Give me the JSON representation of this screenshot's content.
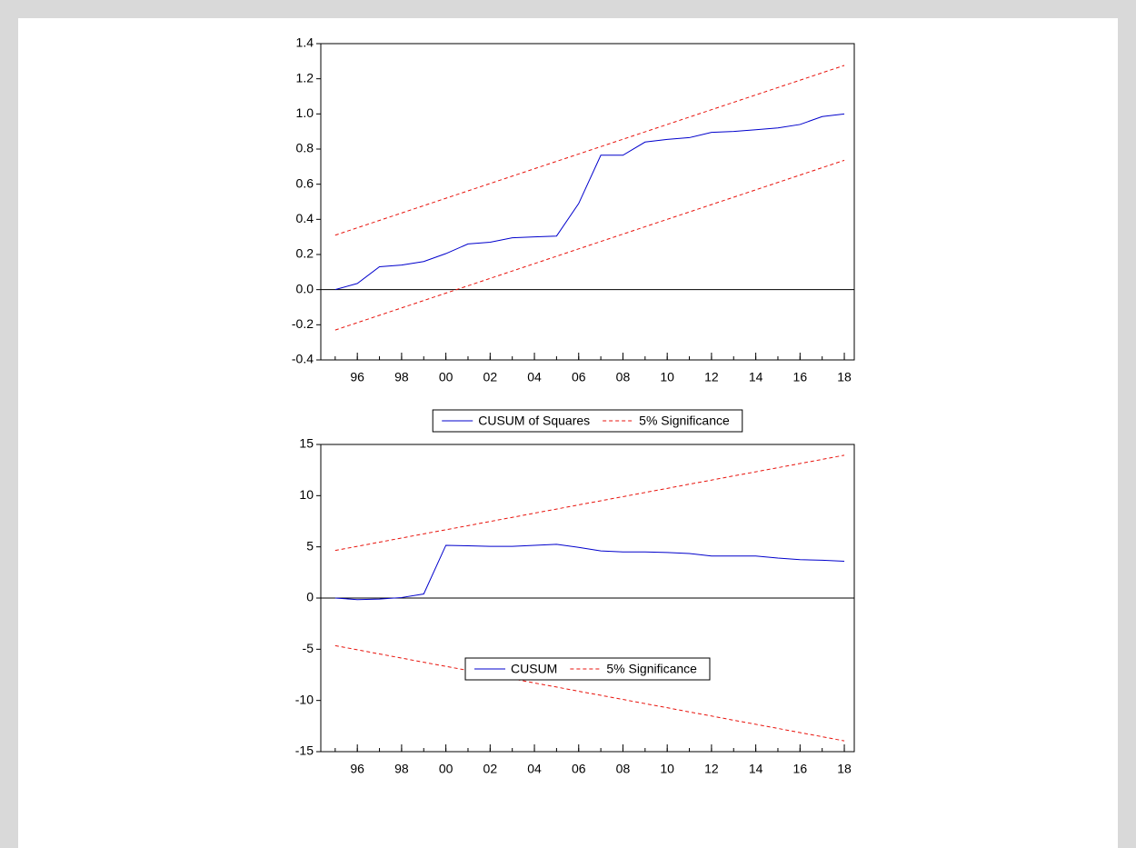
{
  "chart_data": [
    {
      "type": "line",
      "x": [
        1995,
        1996,
        1997,
        1998,
        1999,
        2000,
        2001,
        2002,
        2003,
        2004,
        2005,
        2006,
        2007,
        2008,
        2009,
        2010,
        2011,
        2012,
        2013,
        2014,
        2015,
        2016,
        2017,
        2018
      ],
      "series": [
        {
          "name": "CUSUM of Squares",
          "color": "#0000cc",
          "dash": false,
          "values": [
            0.0,
            0.035,
            0.13,
            0.14,
            0.16,
            0.205,
            0.26,
            0.27,
            0.295,
            0.3,
            0.305,
            0.49,
            0.765,
            0.765,
            0.84,
            0.855,
            0.865,
            0.895,
            0.9,
            0.91,
            0.92,
            0.94,
            0.985,
            1.0
          ]
        },
        {
          "name": "5% Significance",
          "color": "#e8130c",
          "dash": true,
          "values": [
            0.31,
            0.352,
            0.394,
            0.436,
            0.478,
            0.52,
            0.562,
            0.604,
            0.646,
            0.688,
            0.73,
            0.772,
            0.814,
            0.856,
            0.898,
            0.94,
            0.982,
            1.024,
            1.066,
            1.108,
            1.15,
            1.192,
            1.234,
            1.276
          ]
        },
        {
          "color": "#e8130c",
          "dash": true,
          "values": [
            -0.23,
            -0.188,
            -0.146,
            -0.104,
            -0.062,
            -0.02,
            0.022,
            0.064,
            0.106,
            0.148,
            0.19,
            0.232,
            0.274,
            0.316,
            0.358,
            0.4,
            0.442,
            0.484,
            0.526,
            0.568,
            0.61,
            0.652,
            0.694,
            0.736
          ]
        }
      ],
      "xlim": [
        1994.35,
        2018.45
      ],
      "xticks": [
        {
          "value": 1996,
          "label": "96"
        },
        {
          "value": 1998,
          "label": "98"
        },
        {
          "value": 2000,
          "label": "00"
        },
        {
          "value": 2002,
          "label": "02"
        },
        {
          "value": 2004,
          "label": "04"
        },
        {
          "value": 2006,
          "label": "06"
        },
        {
          "value": 2008,
          "label": "08"
        },
        {
          "value": 2010,
          "label": "10"
        },
        {
          "value": 2012,
          "label": "12"
        },
        {
          "value": 2014,
          "label": "14"
        },
        {
          "value": 2016,
          "label": "16"
        },
        {
          "value": 2018,
          "label": "18"
        }
      ],
      "ylim": [
        -0.4,
        1.4
      ],
      "yticks": [
        -0.4,
        -0.2,
        {
          "value": 0,
          "label": "0.0"
        },
        0.2,
        0.4,
        0.6,
        0.8,
        {
          "value": 1,
          "label": "1.0"
        },
        1.2,
        1.4
      ],
      "zero_line": true
    },
    {
      "type": "line",
      "x": [
        1995,
        1996,
        1997,
        1998,
        1999,
        2000,
        2001,
        2002,
        2003,
        2004,
        2005,
        2006,
        2007,
        2008,
        2009,
        2010,
        2011,
        2012,
        2013,
        2014,
        2015,
        2016,
        2017,
        2018
      ],
      "series": [
        {
          "name": "CUSUM",
          "color": "#0000cc",
          "dash": false,
          "values": [
            0,
            -0.15,
            -0.1,
            0.05,
            0.4,
            5.15,
            5.1,
            5.05,
            5.05,
            5.15,
            5.25,
            4.95,
            4.6,
            4.5,
            4.5,
            4.45,
            4.35,
            4.1,
            4.1,
            4.1,
            3.9,
            3.75,
            3.7,
            3.6
          ]
        },
        {
          "name": "5% Significance",
          "color": "#e8130c",
          "dash": true,
          "values": [
            4.65,
            5.05,
            5.46,
            5.86,
            6.27,
            6.67,
            7.07,
            7.48,
            7.88,
            8.29,
            8.69,
            9.1,
            9.5,
            9.9,
            10.31,
            10.71,
            11.12,
            11.52,
            11.93,
            12.33,
            12.73,
            13.14,
            13.54,
            13.95
          ]
        },
        {
          "color": "#e8130c",
          "dash": true,
          "values": [
            -4.65,
            -5.05,
            -5.46,
            -5.86,
            -6.27,
            -6.67,
            -7.07,
            -7.48,
            -7.88,
            -8.29,
            -8.69,
            -9.1,
            -9.5,
            -9.9,
            -10.31,
            -10.71,
            -11.12,
            -11.52,
            -11.93,
            -12.33,
            -12.73,
            -13.14,
            -13.54,
            -13.95
          ]
        }
      ],
      "xlim": [
        1994.35,
        2018.45
      ],
      "xticks": [
        {
          "value": 1996,
          "label": "96"
        },
        {
          "value": 1998,
          "label": "98"
        },
        {
          "value": 2000,
          "label": "00"
        },
        {
          "value": 2002,
          "label": "02"
        },
        {
          "value": 2004,
          "label": "04"
        },
        {
          "value": 2006,
          "label": "06"
        },
        {
          "value": 2008,
          "label": "08"
        },
        {
          "value": 2010,
          "label": "10"
        },
        {
          "value": 2012,
          "label": "12"
        },
        {
          "value": 2014,
          "label": "14"
        },
        {
          "value": 2016,
          "label": "16"
        },
        {
          "value": 2018,
          "label": "18"
        }
      ],
      "ylim": [
        -15,
        15
      ],
      "yticks": [
        -15,
        -10,
        -5,
        0,
        5,
        10,
        15
      ],
      "zero_line": true
    }
  ]
}
